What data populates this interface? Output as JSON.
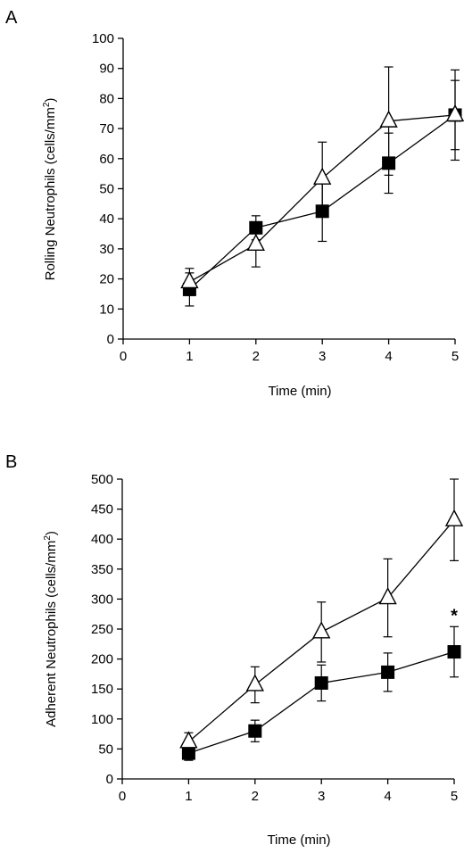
{
  "chart_data": [
    {
      "panel": "A",
      "type": "line",
      "xlabel": "Time (min)",
      "ylabel": "Rolling Neutrophils (cells/mm²)",
      "ylabel_base": "Rolling Neutrophils (cells/mm",
      "ylabel_sup": "2",
      "ylabel_tail": ")",
      "xlim": [
        0,
        5
      ],
      "ylim": [
        0,
        100
      ],
      "xticks": [
        0,
        1,
        2,
        3,
        4,
        5
      ],
      "yticks": [
        0,
        10,
        20,
        30,
        40,
        50,
        60,
        70,
        80,
        90,
        100
      ],
      "grid": false,
      "series": [
        {
          "marker": "filled-square",
          "x": [
            1,
            2,
            3,
            4,
            5
          ],
          "y": [
            16.5,
            37,
            42.5,
            58.5,
            74.5
          ],
          "err": [
            5.5,
            4,
            10,
            10,
            11.5
          ]
        },
        {
          "marker": "open-triangle",
          "x": [
            1,
            2,
            3,
            4,
            5
          ],
          "y": [
            19,
            31.5,
            53.5,
            72.5,
            74.5
          ],
          "err": [
            4.5,
            7.5,
            12,
            18,
            15
          ]
        }
      ],
      "annotations": []
    },
    {
      "panel": "B",
      "type": "line",
      "xlabel": "Time (min)",
      "ylabel": "Adherent Neutrophils (cells/mm²)",
      "ylabel_base": "Adherent Neutrophils (cells/mm",
      "ylabel_sup": "2",
      "ylabel_tail": ")",
      "xlim": [
        0,
        5
      ],
      "ylim": [
        0,
        500
      ],
      "xticks": [
        0,
        1,
        2,
        3,
        4,
        5
      ],
      "yticks": [
        0,
        50,
        100,
        150,
        200,
        250,
        300,
        350,
        400,
        450,
        500
      ],
      "grid": false,
      "series": [
        {
          "marker": "filled-square",
          "x": [
            1,
            2,
            3,
            4,
            5
          ],
          "y": [
            43,
            80,
            160,
            178,
            212
          ],
          "err": [
            12,
            18,
            30,
            32,
            42
          ]
        },
        {
          "marker": "open-triangle",
          "x": [
            1,
            2,
            3,
            4,
            5
          ],
          "y": [
            62,
            157,
            245,
            302,
            432
          ],
          "err": [
            15,
            30,
            50,
            65,
            68
          ]
        }
      ],
      "annotations": [
        {
          "text": "*",
          "x": 5
        }
      ]
    }
  ]
}
